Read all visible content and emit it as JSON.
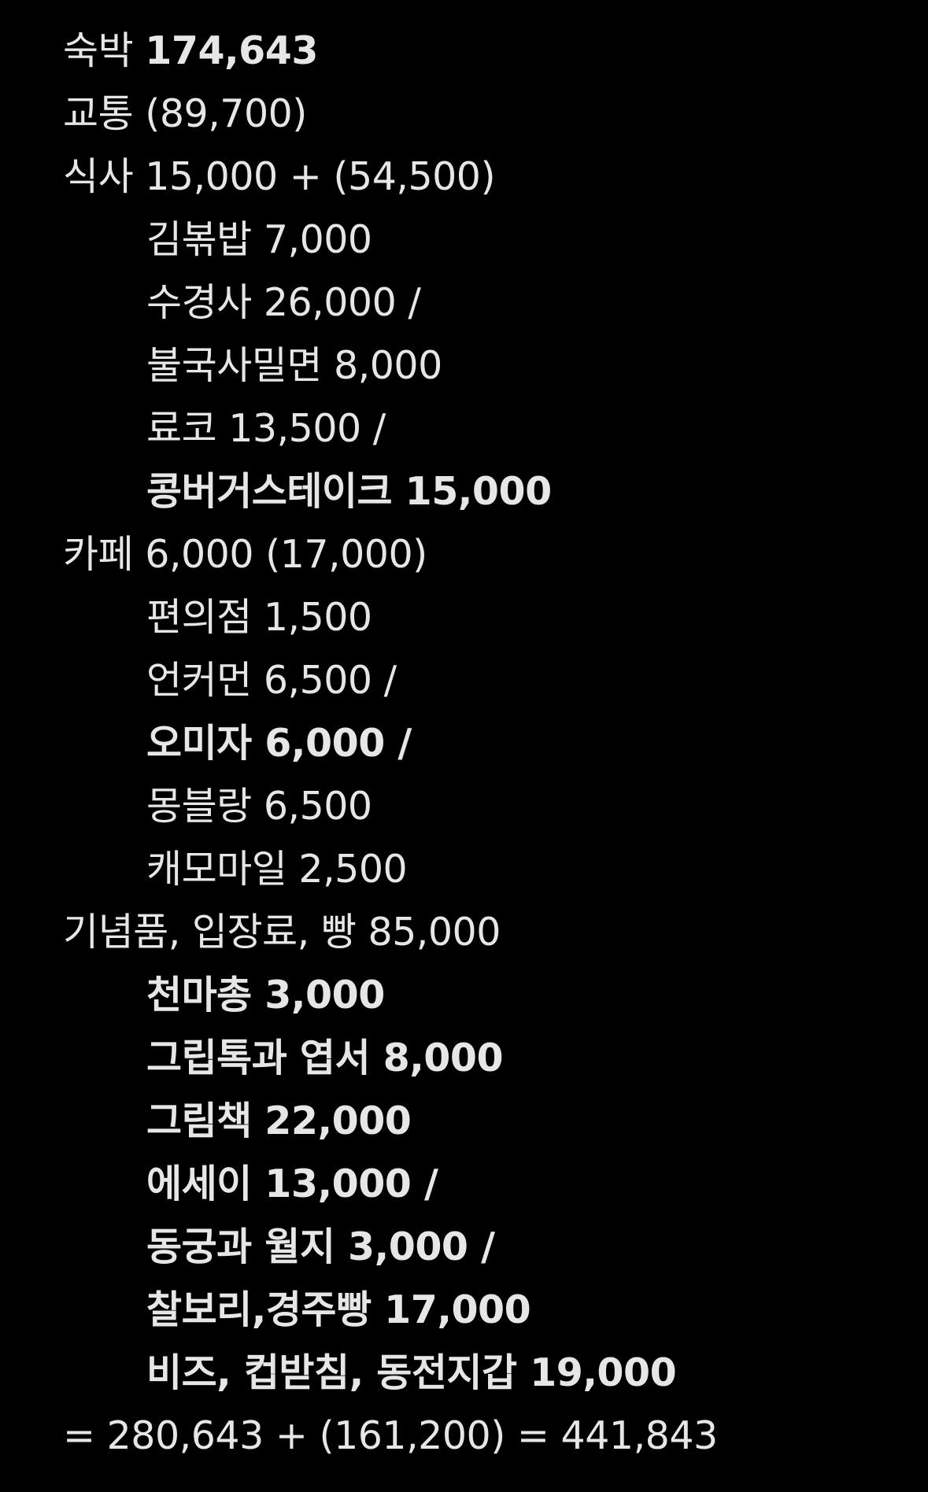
{
  "colors": {
    "background": "#000000",
    "text": "#e6e6e6"
  },
  "note": {
    "lines": [
      {
        "label": "숙박",
        "value": "174,643"
      },
      {
        "text": "교통 (89,700)"
      },
      {
        "text": "식사 15,000 + (54,500)"
      },
      {
        "text": "김볶밥 7,000"
      },
      {
        "text": "수경사 26,000 /"
      },
      {
        "text": "불국사밀면 8,000"
      },
      {
        "text": "료코 13,500 /"
      },
      {
        "text": "콩버거스테이크 15,000"
      },
      {
        "text": "카페 6,000 (17,000)"
      },
      {
        "text": "편의점 1,500"
      },
      {
        "text": "언커먼 6,500 /"
      },
      {
        "text": "오미자 6,000 /"
      },
      {
        "text": "몽블랑 6,500"
      },
      {
        "text": "캐모마일 2,500"
      },
      {
        "text": "기념품, 입장료, 빵 85,000"
      },
      {
        "text": "천마총 3,000"
      },
      {
        "text": "그립톡과 엽서 8,000"
      },
      {
        "text": "그림책 22,000"
      },
      {
        "text": "에세이 13,000 /"
      },
      {
        "text": "동궁과 월지 3,000 /"
      },
      {
        "text": "찰보리,경주빵 17,000"
      },
      {
        "text": "비즈, 컵받침, 동전지갑 19,000"
      },
      {
        "text": "= 280,643 + (161,200) = 441,843"
      }
    ]
  }
}
